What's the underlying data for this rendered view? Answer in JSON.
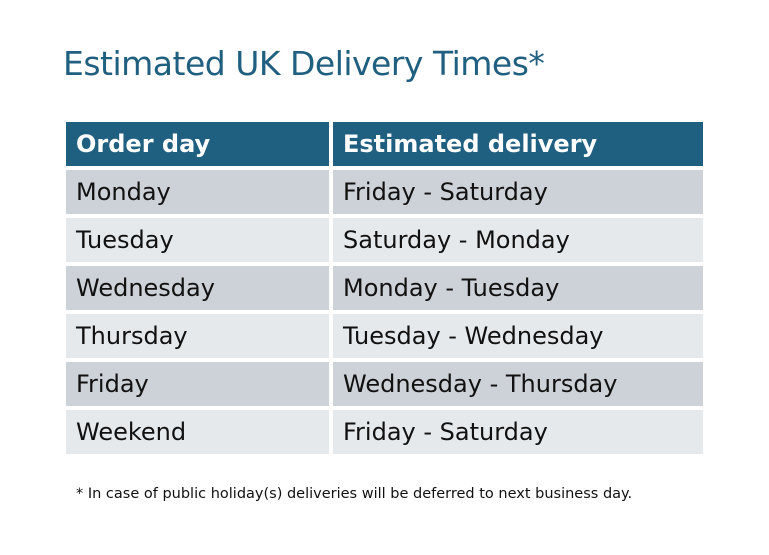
{
  "title": "Estimated UK Delivery Times*",
  "table": {
    "headers": [
      "Order day",
      "Estimated delivery"
    ],
    "rows": [
      [
        "Monday",
        "Friday - Saturday"
      ],
      [
        "Tuesday",
        "Saturday - Monday"
      ],
      [
        "Wednesday",
        "Monday - Tuesday"
      ],
      [
        "Thursday",
        "Tuesday - Wednesday"
      ],
      [
        "Friday",
        "Wednesday - Thursday"
      ],
      [
        "Weekend",
        "Friday - Saturday"
      ]
    ]
  },
  "footnote": "* In case of public holiday(s) deliveries will be deferred to next business day.",
  "colors": {
    "header": "#1f5f80",
    "row_dark": "#cdd1d8",
    "row_light": "#e6e9ec"
  }
}
